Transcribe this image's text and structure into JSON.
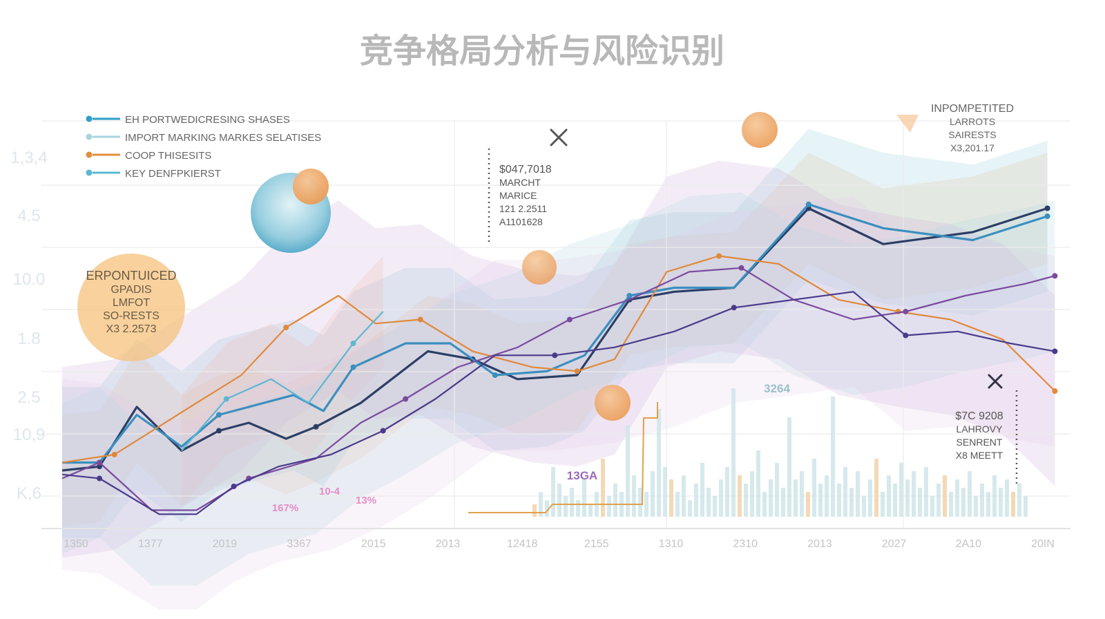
{
  "title": "竞争格局分析与风险识别",
  "legend": [
    {
      "label": "EH PORTWEDICRESING SHASES",
      "color": "#2f9fc6"
    },
    {
      "label": "IMPORT MARKING MARKES SELATISES",
      "color": "#a8d4df"
    },
    {
      "label": "COOP THISESITS",
      "color": "#e38e3c"
    },
    {
      "label": "KEY DENFPKIERST",
      "color": "#5ab8d4"
    }
  ],
  "annotations": {
    "left_bubble": [
      "ERPONTUICED",
      "GPADIS",
      "LMFOT",
      "SO-RESTS",
      "X3 2.2573"
    ],
    "center_callout": [
      "$047,7018",
      "MARCHT",
      "MARICE",
      "121 2.2511",
      "A1101628"
    ],
    "top_right": [
      "INPOMPETITED",
      "LARROTS",
      "SAIRESTS",
      "X3,201.17"
    ],
    "bottom_right": [
      "$7C 9208",
      "LAHROVY",
      "SENRENT",
      "X8 MEETT"
    ],
    "bar_label_a": "3264",
    "bar_label_b": "13GA",
    "pct_a": "10-4",
    "pct_b": "167%",
    "pct_c": "13%"
  },
  "chart_data": {
    "type": "line",
    "title": "竞争格局分析与风险识别",
    "xlabel": "",
    "ylabel": "",
    "x": [
      "1350",
      "1377",
      "2019",
      "3367",
      "2015",
      "2013",
      "12418",
      "2155",
      "1310",
      "2310",
      "2013",
      "2027",
      "2A10",
      "20IN"
    ],
    "y_tick_labels": [
      "1,3,4",
      "4.5",
      "10.0",
      "1.8",
      "2.5",
      "10,9",
      "K,6"
    ],
    "ylim": [
      0,
      100
    ],
    "grid": true,
    "legend_position": "top-left",
    "series": [
      {
        "name": "EH PORTWEDICRESING SHASES",
        "color": "#2c3e66",
        "x": [
          0,
          0.5,
          1.0,
          1.6,
          2.1,
          2.5,
          3.0,
          3.4,
          4.0,
          4.9,
          5.5,
          6.1,
          6.9,
          7.6,
          8.2,
          9.0,
          10.0,
          11.0,
          12.2,
          13.2
        ],
        "values": [
          12,
          13,
          28,
          17,
          22,
          24,
          20,
          23,
          29,
          42,
          40,
          35,
          36,
          55,
          57,
          58,
          78,
          69,
          72,
          78
        ]
      },
      {
        "name": "IMPORT MARKING MARKES SELATISES",
        "color": "#3a8fbf",
        "x": [
          0,
          0.5,
          1.0,
          1.6,
          2.1,
          3.1,
          3.5,
          3.9,
          4.6,
          5.2,
          5.8,
          6.5,
          7.0,
          7.6,
          8.2,
          9.0,
          10.0,
          11.0,
          12.2,
          13.2
        ],
        "values": [
          14,
          14,
          26,
          18,
          26,
          31,
          27,
          38,
          44,
          44,
          36,
          37,
          41,
          56,
          58,
          58,
          79,
          73,
          70,
          76
        ]
      },
      {
        "name": "COOP THISESITS",
        "color": "#e0893a",
        "x": [
          0,
          0.7,
          1.8,
          2.4,
          3.0,
          3.7,
          4.2,
          4.8,
          5.5,
          6.3,
          6.9,
          7.4,
          8.1,
          8.8,
          9.6,
          10.4,
          11.2,
          11.9,
          12.6,
          13.3
        ],
        "values": [
          14,
          16,
          29,
          36,
          48,
          56,
          49,
          50,
          42,
          38,
          37,
          40,
          62,
          66,
          64,
          55,
          52,
          50,
          45,
          32
        ]
      },
      {
        "name": "KEY DENFPKIERST",
        "color": "#5ab8d4",
        "x": [
          1.6,
          2.2,
          2.8,
          3.3,
          3.9,
          4.3
        ],
        "values": [
          17,
          30,
          35,
          29,
          44,
          52
        ]
      },
      {
        "name": "",
        "color": "#7a4a9e",
        "x": [
          0,
          0.5,
          1.2,
          1.8,
          2.5,
          3.4,
          4.0,
          4.6,
          5.3,
          6.1,
          6.8,
          7.6,
          8.4,
          9.1,
          9.8,
          10.6,
          11.3,
          12.1,
          12.9,
          13.3
        ],
        "values": [
          10,
          14,
          2,
          2,
          10,
          15,
          24,
          30,
          38,
          43,
          50,
          55,
          62,
          63,
          55,
          50,
          52,
          56,
          59,
          61
        ]
      },
      {
        "name": "",
        "color": "#4a3a8a",
        "x": [
          0,
          0.5,
          1.3,
          1.8,
          2.3,
          2.9,
          3.6,
          4.3,
          5.0,
          5.8,
          6.6,
          7.4,
          8.2,
          9.0,
          9.8,
          10.6,
          11.3,
          12.0,
          12.7,
          13.3
        ],
        "values": [
          11,
          10,
          1,
          1,
          8,
          13,
          16,
          22,
          30,
          41,
          41,
          43,
          47,
          53,
          55,
          57,
          46,
          47,
          44,
          42
        ]
      }
    ],
    "bars": [
      3,
      6,
      4,
      12,
      8,
      5,
      7,
      4,
      9,
      3,
      6,
      14,
      5,
      8,
      6,
      22,
      10,
      7,
      6,
      11,
      26,
      12,
      9,
      6,
      10,
      4,
      8,
      13,
      7,
      5,
      9,
      12,
      31,
      10,
      8,
      11,
      16,
      6,
      9,
      13,
      7,
      24,
      9,
      11,
      6,
      14,
      8,
      10,
      29,
      8,
      12,
      7,
      11,
      5,
      9,
      14,
      6,
      10,
      8,
      13,
      9,
      11,
      7,
      12,
      5,
      8,
      10,
      6,
      9,
      7,
      11,
      5,
      8,
      6,
      10,
      7,
      9,
      6,
      8,
      5
    ]
  }
}
